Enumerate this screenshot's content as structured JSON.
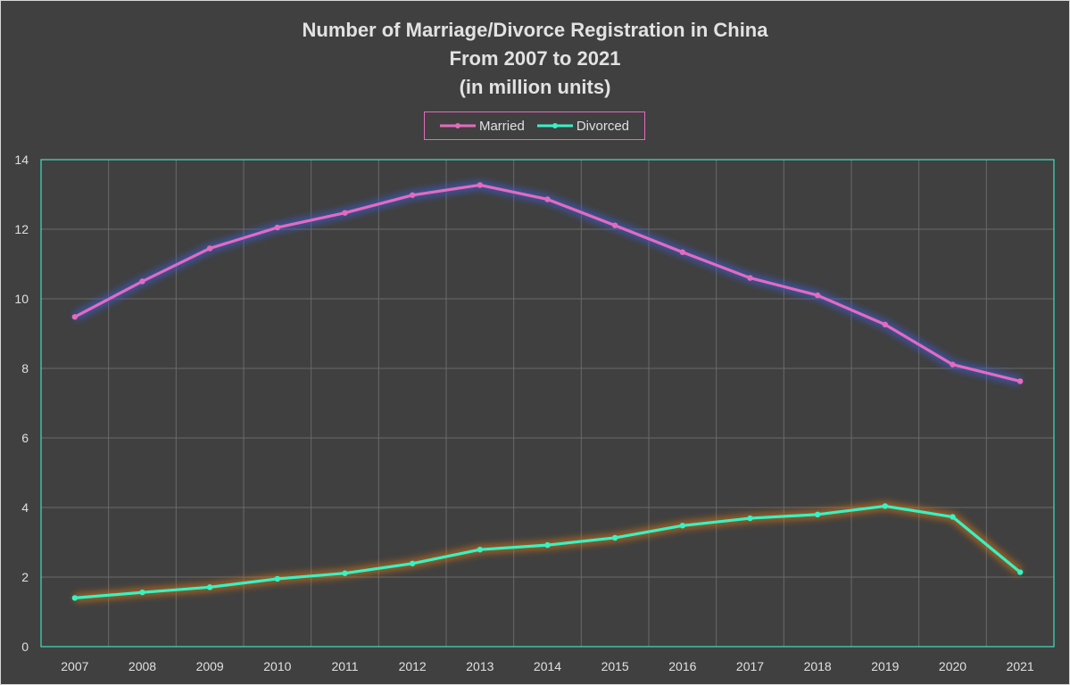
{
  "title_lines": [
    "Number of Marriage/Divorce  Registration in China",
    "From 2007 to 2021",
    "(in million units)"
  ],
  "colors": {
    "background": "#404040",
    "plot_border": "#3fe0c0",
    "grid": "#6a6a6a",
    "married": "#e36bbd",
    "divorced": "#36f2c4",
    "married_glow": "#3a5ccf",
    "divorced_glow": "#c8701e",
    "text": "#e0e0e0"
  },
  "legend": {
    "position": "top-center",
    "items": [
      {
        "label": "Married",
        "color": "#e36bbd"
      },
      {
        "label": "Divorced",
        "color": "#36f2c4"
      }
    ]
  },
  "chart_data": {
    "type": "line",
    "title": "Number of Marriage/Divorce  Registration in China From 2007 to 2021 (in million units)",
    "x": [
      "2007",
      "2008",
      "2009",
      "2010",
      "2011",
      "2012",
      "2013",
      "2014",
      "2015",
      "2016",
      "2017",
      "2018",
      "2019",
      "2020",
      "2021"
    ],
    "series": [
      {
        "name": "Married",
        "values": [
          9.48,
          10.5,
          11.45,
          12.05,
          12.47,
          12.98,
          13.27,
          12.86,
          12.11,
          11.34,
          10.6,
          10.1,
          9.26,
          8.11,
          7.63
        ]
      },
      {
        "name": "Divorced",
        "values": [
          1.4,
          1.56,
          1.71,
          1.95,
          2.11,
          2.39,
          2.79,
          2.92,
          3.13,
          3.48,
          3.69,
          3.8,
          4.04,
          3.73,
          2.14
        ]
      }
    ],
    "ylim": [
      0,
      14
    ],
    "yticks": [
      0,
      2,
      4,
      6,
      8,
      10,
      12,
      14
    ],
    "xlabel": "",
    "ylabel": "",
    "grid": true
  }
}
